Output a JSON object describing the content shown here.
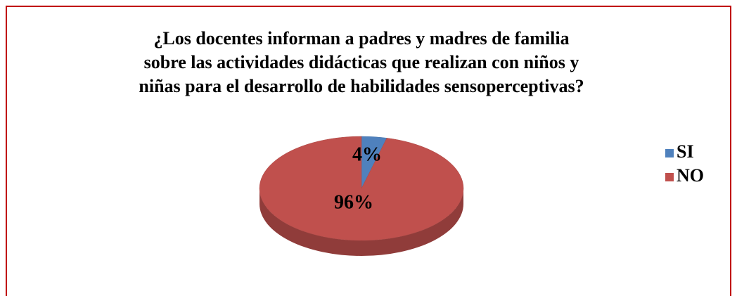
{
  "chart_data": {
    "type": "pie",
    "title": "¿Los docentes informan a padres y madres de familia sobre las actividades didácticas que realizan con niños y niñas para el desarrollo de habilidades sensoperceptivas?",
    "categories": [
      "SI",
      "NO"
    ],
    "values": [
      4,
      96
    ],
    "value_labels": [
      "4%",
      "96%"
    ],
    "colors": [
      "#4f81bd",
      "#c0504d"
    ],
    "legend": "right"
  }
}
